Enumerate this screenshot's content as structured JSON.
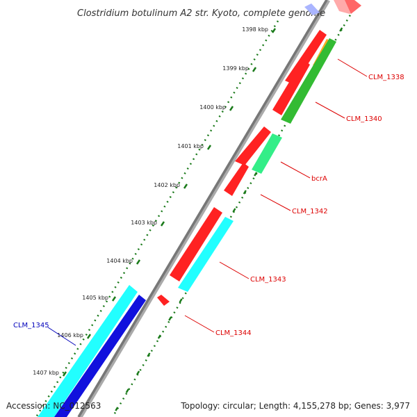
{
  "title": "Clostridium botulinum A2 str. Kyoto, complete genome",
  "ticks": [
    "1398 kbp",
    "1399 kbp",
    "1400 kbp",
    "1401 kbp",
    "1402 kbp",
    "1403 kbp",
    "1404 kbp",
    "1405 kbp",
    "1406 kbp",
    "1407 kbp"
  ],
  "genes": [
    {
      "label": "CLM_1338",
      "color": "#dd0000",
      "fill": "#ff2222",
      "strand": "plus"
    },
    {
      "label": "CLM_1340",
      "color": "#dd0000",
      "fill": "#33bb33",
      "strand": "minus"
    },
    {
      "label": "bcrA",
      "color": "#dd0000",
      "fill": "#33ee88",
      "strand": "minus"
    },
    {
      "label": "CLM_1342",
      "color": "#dd0000",
      "fill": "#ff2222",
      "strand": "plus"
    },
    {
      "label": "CLM_1343",
      "color": "#dd0000",
      "fill": "#22ffff",
      "strand": "minus"
    },
    {
      "label": "CLM_1344",
      "color": "#dd0000",
      "fill": "#ff2222",
      "strand": "plus"
    },
    {
      "label": "CLM_1345",
      "color": "#0000bb",
      "fill": "#22ffff",
      "strand": "outer"
    }
  ],
  "footer": {
    "accession": "Accession: NC_012563",
    "topology": "Topology: circular; Length: 4,155,278 bp; Genes: 3,977"
  },
  "colors": {
    "backbone": "#888888",
    "tick_marks": "#1a7a1a",
    "dotted_track": "#1a7a1a",
    "red_gene": "#ff2222",
    "cyan_gene": "#22ffff",
    "blue_gene": "#1111dd",
    "green_gene": "#33bb33",
    "mint_gene": "#33ee88",
    "orange_gene": "#ffaa22"
  }
}
